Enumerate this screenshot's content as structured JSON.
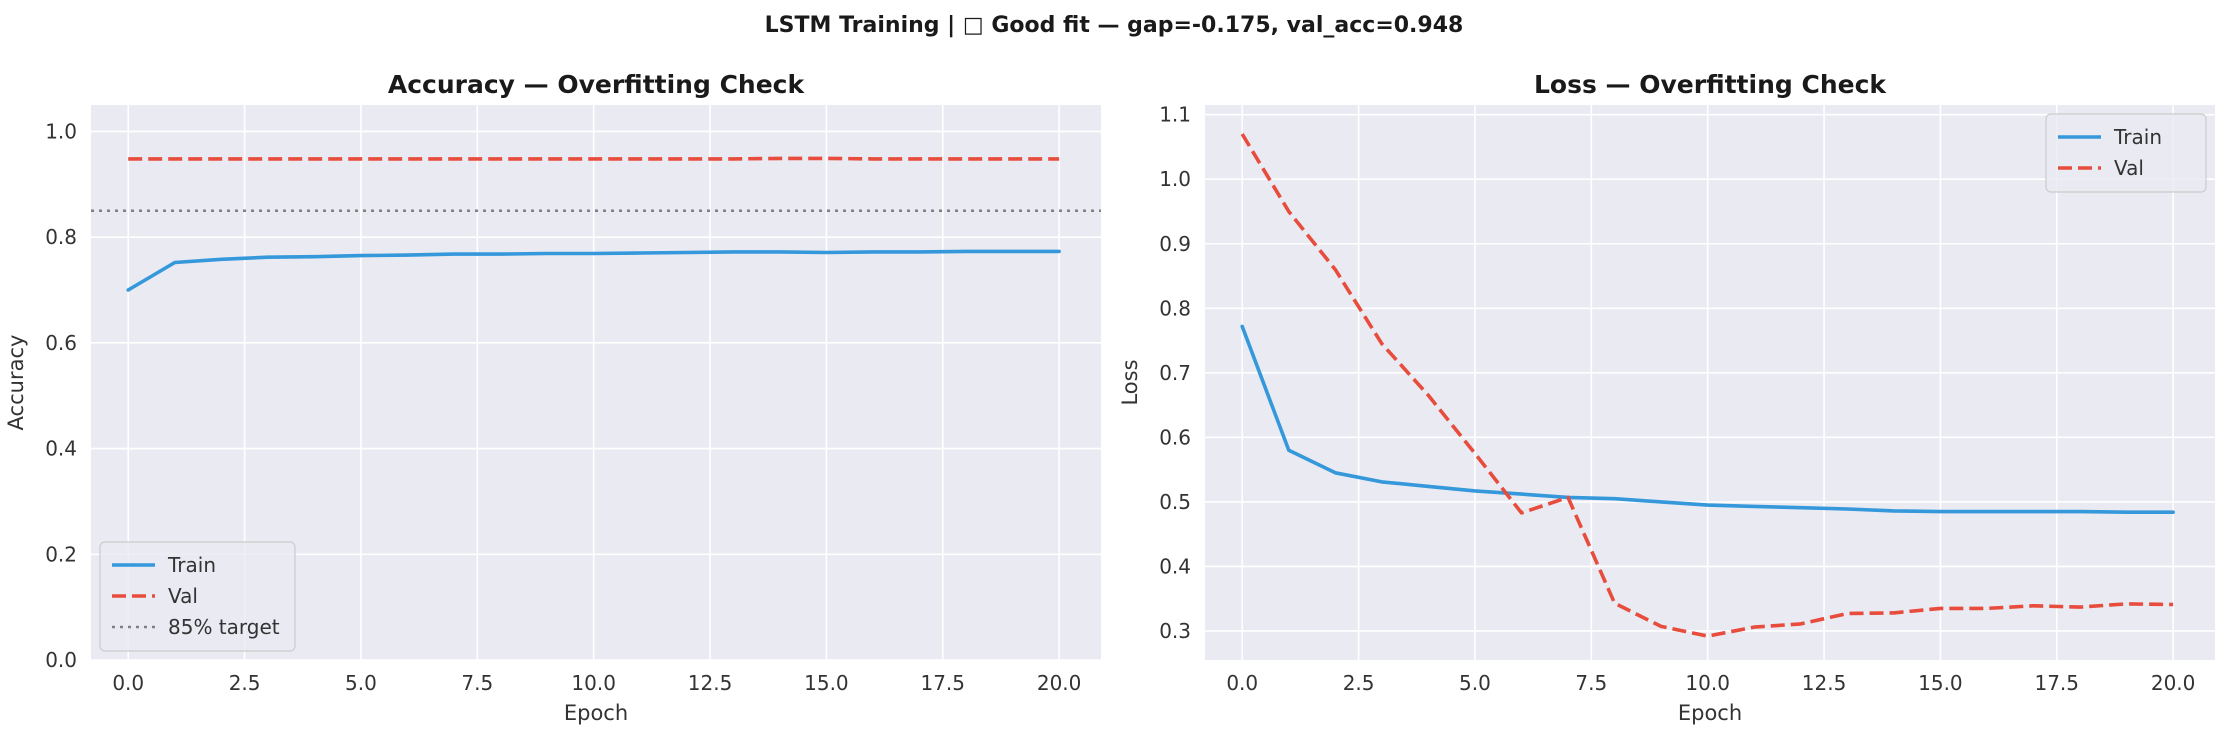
{
  "figure": {
    "suptitle": "LSTM Training  |  □ Good fit — gap=-0.175, val_acc=0.948"
  },
  "colors": {
    "train": "#3498db",
    "val": "#e74c3c",
    "target": "#808080",
    "panel_bg": "#eaeaf2",
    "grid": "#ffffff"
  },
  "chart_data": [
    {
      "type": "line",
      "title": "Accuracy — Overfitting Check",
      "xlabel": "Epoch",
      "ylabel": "Accuracy",
      "xlim": [
        -0.8,
        20.9
      ],
      "ylim": [
        0.0,
        1.05
      ],
      "xticks": [
        0,
        2.5,
        5,
        7.5,
        10,
        12.5,
        15,
        17.5,
        20
      ],
      "xtick_labels": [
        "0.0",
        "2.5",
        "5.0",
        "7.5",
        "10.0",
        "12.5",
        "15.0",
        "17.5",
        "20.0"
      ],
      "yticks": [
        0.0,
        0.2,
        0.4,
        0.6,
        0.8,
        1.0
      ],
      "ytick_labels": [
        "0.0",
        "0.2",
        "0.4",
        "0.6",
        "0.8",
        "1.0"
      ],
      "grid": true,
      "legend_position": "lower-left",
      "x": [
        0,
        1,
        2,
        3,
        4,
        5,
        6,
        7,
        8,
        9,
        10,
        11,
        12,
        13,
        14,
        15,
        16,
        17,
        18,
        19,
        20
      ],
      "series": [
        {
          "name": "Train",
          "style": "solid",
          "values": [
            0.7,
            0.752,
            0.758,
            0.762,
            0.763,
            0.765,
            0.766,
            0.768,
            0.768,
            0.769,
            0.769,
            0.77,
            0.771,
            0.772,
            0.772,
            0.771,
            0.772,
            0.772,
            0.773,
            0.773,
            0.773
          ]
        },
        {
          "name": "Val",
          "style": "dashed",
          "values": [
            0.948,
            0.948,
            0.948,
            0.948,
            0.948,
            0.948,
            0.948,
            0.948,
            0.948,
            0.948,
            0.948,
            0.948,
            0.948,
            0.948,
            0.949,
            0.949,
            0.948,
            0.948,
            0.948,
            0.948,
            0.948
          ]
        }
      ],
      "hlines": [
        {
          "name": "85% target",
          "value": 0.85,
          "style": "dotted"
        }
      ]
    },
    {
      "type": "line",
      "title": "Loss — Overfitting Check",
      "xlabel": "Epoch",
      "ylabel": "Loss",
      "xlim": [
        -0.8,
        20.9
      ],
      "ylim": [
        0.255,
        1.115
      ],
      "xticks": [
        0,
        2.5,
        5,
        7.5,
        10,
        12.5,
        15,
        17.5,
        20
      ],
      "xtick_labels": [
        "0.0",
        "2.5",
        "5.0",
        "7.5",
        "10.0",
        "12.5",
        "15.0",
        "17.5",
        "20.0"
      ],
      "yticks": [
        0.3,
        0.4,
        0.5,
        0.6,
        0.7,
        0.8,
        0.9,
        1.0,
        1.1
      ],
      "ytick_labels": [
        "0.3",
        "0.4",
        "0.5",
        "0.6",
        "0.7",
        "0.8",
        "0.9",
        "1.0",
        "1.1"
      ],
      "grid": true,
      "legend_position": "upper-right",
      "x": [
        0,
        1,
        2,
        3,
        4,
        5,
        6,
        7,
        8,
        9,
        10,
        11,
        12,
        13,
        14,
        15,
        16,
        17,
        18,
        19,
        20
      ],
      "series": [
        {
          "name": "Train",
          "style": "solid",
          "values": [
            0.772,
            0.58,
            0.545,
            0.531,
            0.524,
            0.517,
            0.512,
            0.507,
            0.505,
            0.5,
            0.495,
            0.493,
            0.491,
            0.489,
            0.486,
            0.485,
            0.485,
            0.485,
            0.485,
            0.484,
            0.484
          ]
        },
        {
          "name": "Val",
          "style": "dashed",
          "values": [
            1.07,
            0.95,
            0.86,
            0.745,
            0.665,
            0.575,
            0.483,
            0.507,
            0.343,
            0.307,
            0.292,
            0.306,
            0.311,
            0.327,
            0.328,
            0.335,
            0.335,
            0.339,
            0.337,
            0.342,
            0.341
          ]
        }
      ],
      "hlines": []
    }
  ]
}
